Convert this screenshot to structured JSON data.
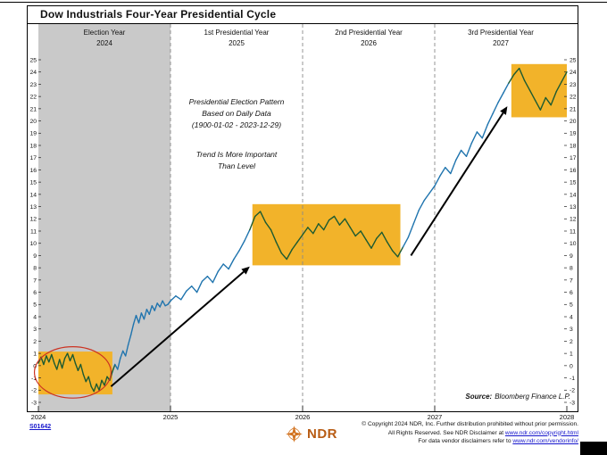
{
  "title": "Dow Industrials Four-Year Presidential Cycle",
  "sections": [
    {
      "label": "Election Year",
      "year": "2024"
    },
    {
      "label": "1st Presidential Year",
      "year": "2025"
    },
    {
      "label": "2nd Presidential Year",
      "year": "2026"
    },
    {
      "label": "3rd Presidential Year",
      "year": "2027"
    }
  ],
  "annotations": {
    "pattern_lines": [
      "Presidential Election Pattern",
      "Based on Daily Data",
      "(1900-01-02 - 2023-12-29)"
    ],
    "trend_lines": [
      "Trend Is More Important",
      "Than Level"
    ],
    "source_label": "Source:",
    "source_value": "Bloomberg Finance L.P."
  },
  "footer": {
    "chart_id": "S01642",
    "logo_text": "NDR",
    "copyright_line1": "© Copyright 2024 NDR, Inc. Further distribution prohibited without prior permission.",
    "copyright_line2_prefix": "All Rights Reserved. See NDR Disclaimer at ",
    "copyright_line2_link": "www.ndr.com/copyright.html",
    "copyright_line3_prefix": "For data vendor disclaimers refer to ",
    "copyright_line3_link": "www.ndr.com/vendorinfo/"
  },
  "colors": {
    "line_blue": "#1f74ae",
    "line_green": "#1c5a31",
    "highlight_orange": "#f2b32a",
    "gray_band": "#c9c9c9",
    "ellipse_red": "#cc3322",
    "axis_black": "#222222",
    "dash_gray": "#8a8a8a",
    "link_blue": "#1515cc"
  },
  "chart_data": {
    "type": "line",
    "title": "Dow Industrials Four-Year Presidential Cycle",
    "x_range": [
      2024,
      2028
    ],
    "y_range": [
      -3,
      25
    ],
    "x_ticks": [
      2024,
      2025,
      2026,
      2027,
      2028
    ],
    "y_tick_step": 1,
    "dashed_vlines": [
      2025,
      2026,
      2027
    ],
    "shaded_band": {
      "x0": 2024,
      "x1": 2025
    },
    "highlight_boxes": [
      {
        "x0": 2024.0,
        "x1": 2024.56,
        "y0": -2.35,
        "y1": 1.15
      },
      {
        "x0": 2025.62,
        "x1": 2026.74,
        "y0": 8.2,
        "y1": 13.2
      },
      {
        "x0": 2027.58,
        "x1": 2028.0,
        "y0": 20.3,
        "y1": 24.65
      }
    ],
    "green_x_ranges": [
      [
        2024.0,
        2024.57
      ],
      [
        2025.62,
        2026.74
      ],
      [
        2027.58,
        2028.0
      ]
    ],
    "ellipse": {
      "cx": 2024.26,
      "cy": -0.55,
      "rx_years": 0.29,
      "ry_units": 2.1
    },
    "arrows": [
      {
        "x1": 2024.55,
        "y1": -1.7,
        "x2": 2025.6,
        "y2": 8.1
      },
      {
        "x1": 2026.82,
        "y1": 9.0,
        "x2": 2027.55,
        "y2": 21.2
      }
    ],
    "series": [
      {
        "name": "Dow Industrials four-year presidential cycle composite",
        "points": [
          [
            2024.0,
            0.2
          ],
          [
            2024.02,
            0.7
          ],
          [
            2024.04,
            0.1
          ],
          [
            2024.06,
            0.8
          ],
          [
            2024.08,
            0.3
          ],
          [
            2024.1,
            0.9
          ],
          [
            2024.12,
            0.2
          ],
          [
            2024.14,
            -0.3
          ],
          [
            2024.16,
            0.5
          ],
          [
            2024.18,
            -0.2
          ],
          [
            2024.2,
            0.6
          ],
          [
            2024.22,
            1.0
          ],
          [
            2024.24,
            0.4
          ],
          [
            2024.26,
            0.9
          ],
          [
            2024.28,
            0.2
          ],
          [
            2024.3,
            -0.4
          ],
          [
            2024.32,
            0.1
          ],
          [
            2024.34,
            -0.7
          ],
          [
            2024.36,
            -1.3
          ],
          [
            2024.38,
            -0.9
          ],
          [
            2024.4,
            -1.7
          ],
          [
            2024.42,
            -2.1
          ],
          [
            2024.44,
            -1.5
          ],
          [
            2024.46,
            -2.0
          ],
          [
            2024.48,
            -1.2
          ],
          [
            2024.5,
            -1.6
          ],
          [
            2024.52,
            -0.9
          ],
          [
            2024.54,
            -1.2
          ],
          [
            2024.56,
            -0.5
          ],
          [
            2024.58,
            0.1
          ],
          [
            2024.6,
            -0.3
          ],
          [
            2024.62,
            0.6
          ],
          [
            2024.64,
            1.2
          ],
          [
            2024.66,
            0.8
          ],
          [
            2024.68,
            1.7
          ],
          [
            2024.7,
            2.5
          ],
          [
            2024.72,
            3.4
          ],
          [
            2024.74,
            4.1
          ],
          [
            2024.76,
            3.5
          ],
          [
            2024.78,
            4.3
          ],
          [
            2024.8,
            3.8
          ],
          [
            2024.82,
            4.6
          ],
          [
            2024.84,
            4.2
          ],
          [
            2024.86,
            4.9
          ],
          [
            2024.88,
            4.5
          ],
          [
            2024.9,
            5.1
          ],
          [
            2024.92,
            4.8
          ],
          [
            2024.94,
            5.3
          ],
          [
            2024.96,
            4.9
          ],
          [
            2024.98,
            5.0
          ],
          [
            2025.0,
            5.3
          ],
          [
            2025.04,
            5.7
          ],
          [
            2025.08,
            5.4
          ],
          [
            2025.12,
            6.1
          ],
          [
            2025.16,
            6.5
          ],
          [
            2025.2,
            6.0
          ],
          [
            2025.24,
            6.9
          ],
          [
            2025.28,
            7.3
          ],
          [
            2025.32,
            6.8
          ],
          [
            2025.36,
            7.7
          ],
          [
            2025.4,
            8.3
          ],
          [
            2025.44,
            7.9
          ],
          [
            2025.48,
            8.7
          ],
          [
            2025.52,
            9.4
          ],
          [
            2025.56,
            10.2
          ],
          [
            2025.6,
            11.1
          ],
          [
            2025.64,
            12.2
          ],
          [
            2025.68,
            12.6
          ],
          [
            2025.72,
            11.7
          ],
          [
            2025.76,
            11.1
          ],
          [
            2025.8,
            10.1
          ],
          [
            2025.84,
            9.2
          ],
          [
            2025.88,
            8.7
          ],
          [
            2025.92,
            9.5
          ],
          [
            2025.96,
            10.1
          ],
          [
            2026.0,
            10.7
          ],
          [
            2026.04,
            11.3
          ],
          [
            2026.08,
            10.8
          ],
          [
            2026.12,
            11.6
          ],
          [
            2026.16,
            11.1
          ],
          [
            2026.2,
            11.9
          ],
          [
            2026.24,
            12.2
          ],
          [
            2026.28,
            11.5
          ],
          [
            2026.32,
            12.0
          ],
          [
            2026.36,
            11.3
          ],
          [
            2026.4,
            10.6
          ],
          [
            2026.44,
            11.0
          ],
          [
            2026.48,
            10.3
          ],
          [
            2026.52,
            9.6
          ],
          [
            2026.56,
            10.4
          ],
          [
            2026.6,
            10.9
          ],
          [
            2026.64,
            10.1
          ],
          [
            2026.68,
            9.4
          ],
          [
            2026.72,
            8.9
          ],
          [
            2026.76,
            9.7
          ],
          [
            2026.8,
            10.5
          ],
          [
            2026.84,
            11.6
          ],
          [
            2026.88,
            12.7
          ],
          [
            2026.92,
            13.5
          ],
          [
            2026.96,
            14.1
          ],
          [
            2027.0,
            14.7
          ],
          [
            2027.04,
            15.5
          ],
          [
            2027.08,
            16.2
          ],
          [
            2027.12,
            15.7
          ],
          [
            2027.16,
            16.8
          ],
          [
            2027.2,
            17.6
          ],
          [
            2027.24,
            17.1
          ],
          [
            2027.28,
            18.2
          ],
          [
            2027.32,
            19.1
          ],
          [
            2027.36,
            18.6
          ],
          [
            2027.4,
            19.7
          ],
          [
            2027.44,
            20.6
          ],
          [
            2027.48,
            21.5
          ],
          [
            2027.52,
            22.3
          ],
          [
            2027.56,
            23.1
          ],
          [
            2027.6,
            23.8
          ],
          [
            2027.64,
            24.3
          ],
          [
            2027.68,
            23.3
          ],
          [
            2027.72,
            22.5
          ],
          [
            2027.76,
            21.7
          ],
          [
            2027.8,
            20.9
          ],
          [
            2027.84,
            21.9
          ],
          [
            2027.88,
            21.3
          ],
          [
            2027.92,
            22.4
          ],
          [
            2027.96,
            23.2
          ],
          [
            2028.0,
            24.0
          ]
        ]
      }
    ]
  }
}
